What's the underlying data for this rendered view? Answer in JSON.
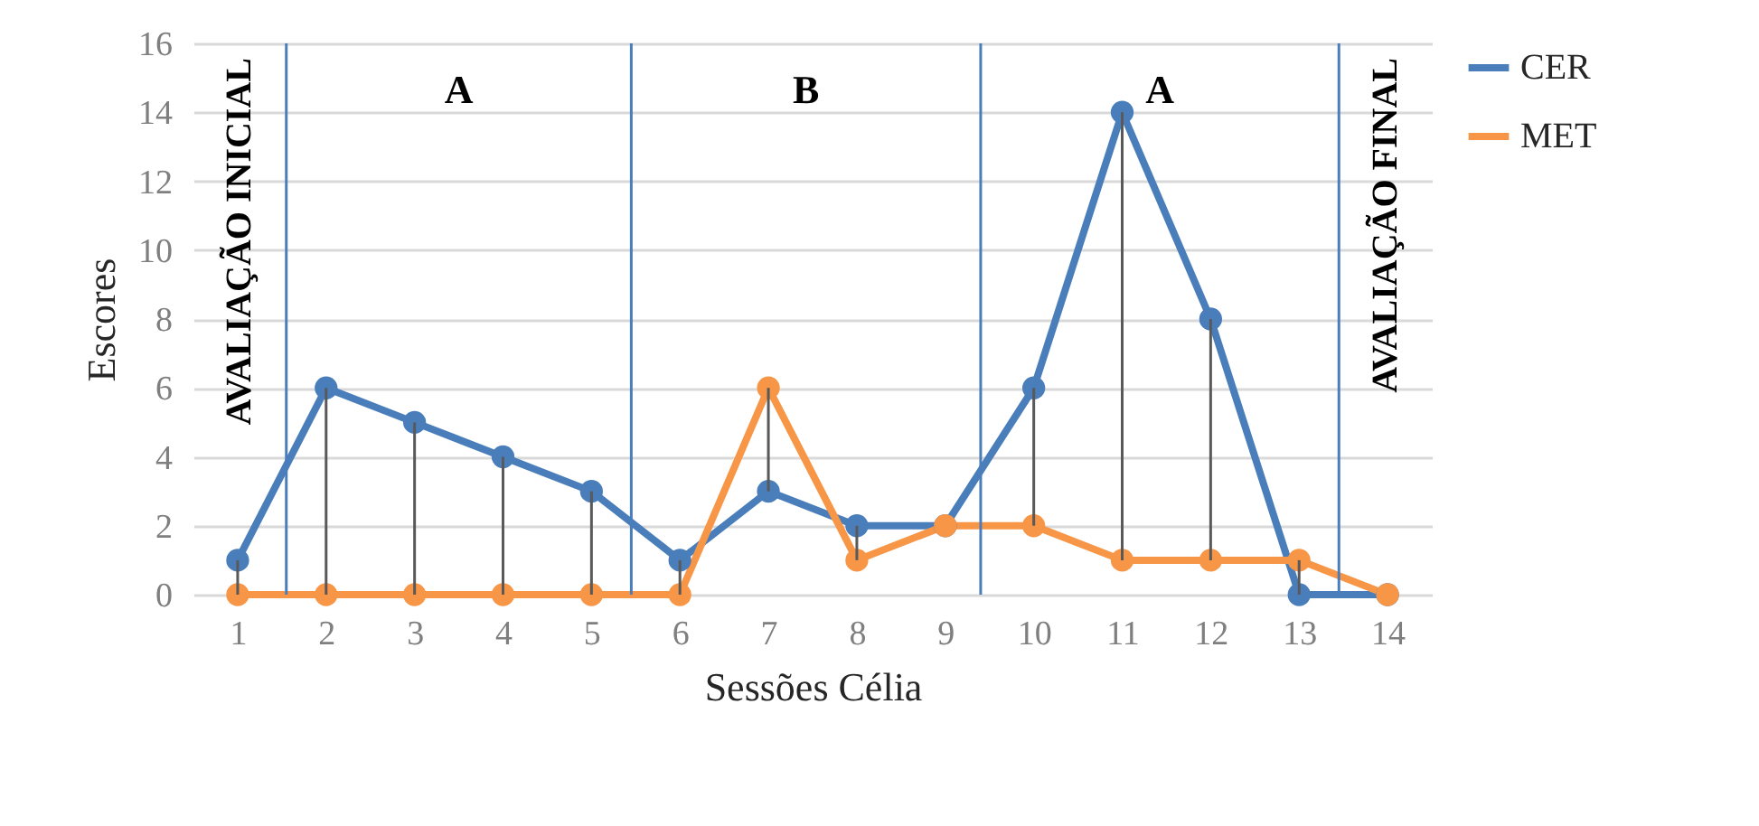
{
  "chart_data": {
    "type": "line",
    "xlabel": "Sessões Célia",
    "ylabel": "Escores",
    "x": [
      1,
      2,
      3,
      4,
      5,
      6,
      7,
      8,
      9,
      10,
      11,
      12,
      13,
      14
    ],
    "series": [
      {
        "name": "CER",
        "color": "#4a7ebb",
        "values": [
          1,
          6,
          5,
          4,
          3,
          1,
          3,
          2,
          2,
          6,
          14,
          8,
          0,
          0
        ],
        "errors": [
          [
            0,
            1
          ],
          [
            0,
            6
          ],
          [
            0,
            5
          ],
          [
            0,
            4
          ],
          [
            0,
            3
          ],
          [
            0,
            1
          ],
          [
            3,
            6
          ],
          [
            1,
            2
          ],
          null,
          [
            2,
            6
          ],
          [
            1,
            14
          ],
          [
            1,
            8
          ],
          [
            0,
            1
          ],
          null
        ]
      },
      {
        "name": "MET",
        "color": "#f79646",
        "values": [
          0,
          0,
          0,
          0,
          0,
          0,
          6,
          1,
          2,
          2,
          1,
          1,
          1,
          0
        ]
      }
    ],
    "xlim": [
      0.5,
      14.5
    ],
    "xticks": [
      1,
      2,
      3,
      4,
      5,
      6,
      7,
      8,
      9,
      10,
      11,
      12,
      13,
      14
    ],
    "ylim": [
      0,
      16
    ],
    "yticks": [
      0,
      2,
      4,
      6,
      8,
      10,
      12,
      14,
      16
    ],
    "grid": "y",
    "legend": "right",
    "marker": "circle",
    "line_style": "solid",
    "ref_lines": [
      {
        "axis": "x",
        "value": 1.55,
        "color": "#4a7ebb"
      },
      {
        "axis": "x",
        "value": 5.45,
        "color": "#4a7ebb"
      },
      {
        "axis": "x",
        "value": 9.4,
        "color": "#4a7ebb"
      },
      {
        "axis": "x",
        "value": 13.45,
        "color": "#4a7ebb"
      }
    ],
    "annotations": [
      "AVALIAÇÃO INICIAL",
      "A",
      "B",
      "A",
      "AVALIAÇÃO FINAL"
    ]
  }
}
